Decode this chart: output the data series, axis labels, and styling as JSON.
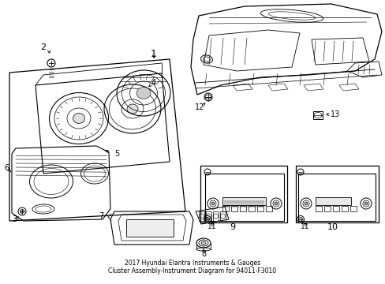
{
  "bg": "#ffffff",
  "lc": "#000000",
  "fig_w": 4.89,
  "fig_h": 3.6,
  "dpi": 100,
  "title": "2017 Hyundai Elantra Instruments & Gauges\nCluster Assembly-Instrument Diagram for 94011-F3010"
}
